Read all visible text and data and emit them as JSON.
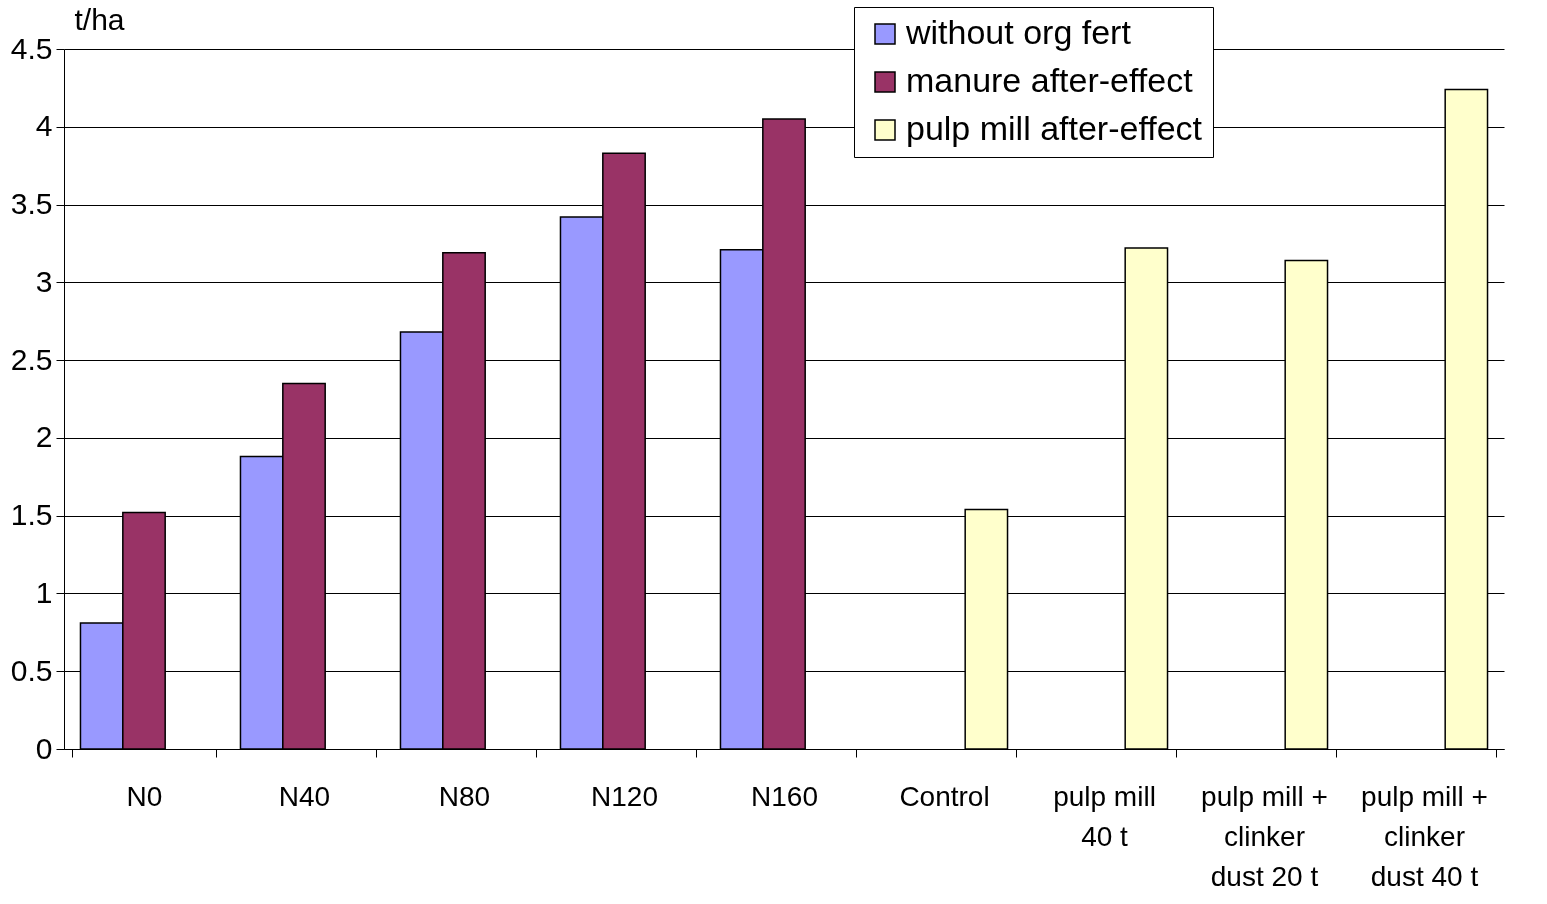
{
  "chart_data": {
    "type": "bar",
    "ylabel": "t/ha",
    "categories": [
      "N0",
      "N40",
      "N80",
      "N120",
      "N160",
      "Control",
      "pulp mill 40 t",
      "pulp mill + clinker dust 20 t",
      "pulp mill + clinker dust 40 t"
    ],
    "series": [
      {
        "name": "without org fert",
        "color": "#9999ff",
        "values": [
          0.81,
          1.88,
          2.68,
          3.42,
          3.21,
          null,
          null,
          null,
          null
        ]
      },
      {
        "name": "manure after-effect",
        "color": "#993366",
        "values": [
          1.52,
          2.35,
          3.19,
          3.83,
          4.05,
          null,
          null,
          null,
          null
        ]
      },
      {
        "name": "pulp mill after-effect",
        "color": "#ffffcc",
        "values": [
          null,
          null,
          null,
          null,
          null,
          1.54,
          3.22,
          3.14,
          4.24
        ]
      }
    ],
    "ylim": [
      0,
      4.5
    ],
    "yticks": [
      0,
      0.5,
      1,
      1.5,
      2,
      2.5,
      3,
      3.5,
      4,
      4.5
    ],
    "grid": "y",
    "legend": "top right"
  }
}
